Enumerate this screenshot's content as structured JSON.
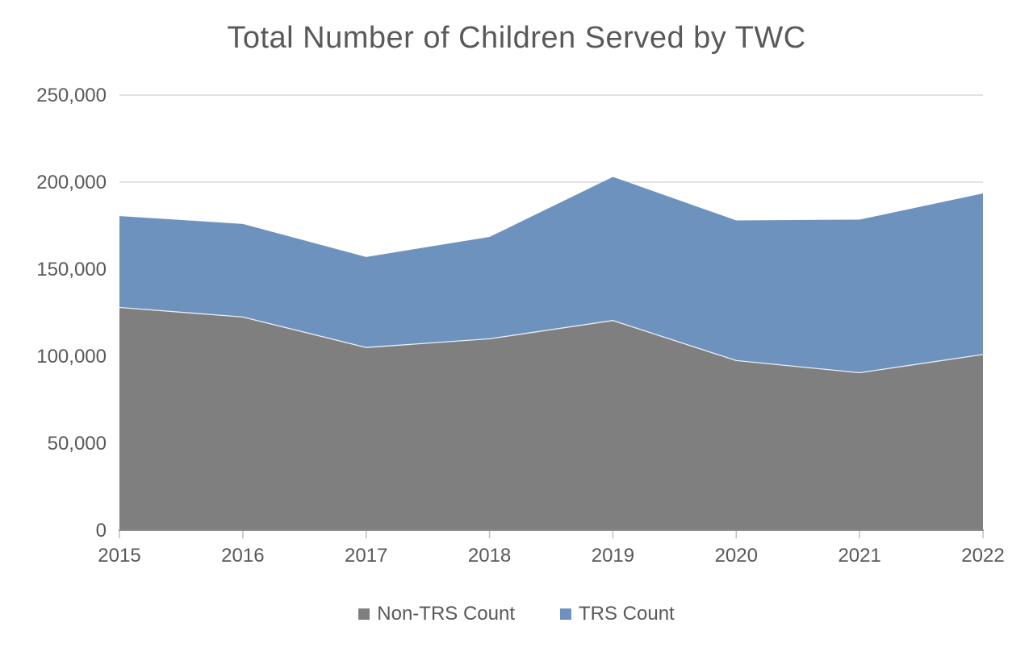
{
  "chart_data": {
    "type": "area",
    "stacked": true,
    "title": "Total Number of Children Served by TWC",
    "categories": [
      "2015",
      "2016",
      "2017",
      "2018",
      "2019",
      "2020",
      "2021",
      "2022"
    ],
    "series": [
      {
        "name": "Non-TRS Count",
        "color": "#7f7f7f",
        "values": [
          128000,
          122500,
          105000,
          110000,
          120500,
          97500,
          90500,
          101000
        ]
      },
      {
        "name": "TRS Count",
        "color": "#6e92be",
        "values": [
          52500,
          53500,
          52000,
          58500,
          82500,
          80500,
          88000,
          92500
        ]
      }
    ],
    "stacked_totals": [
      180500,
      176000,
      157000,
      168500,
      203000,
      178000,
      178500,
      193500
    ],
    "xlabel": "",
    "ylabel": "",
    "ylim": [
      0,
      250000
    ],
    "ytick_interval": 50000,
    "yticklabels": [
      "0",
      "50,000",
      "100,000",
      "150,000",
      "200,000",
      "250,000"
    ],
    "grid": true,
    "legend_position": "bottom"
  },
  "colors": {
    "gridline": "#d9d9d9",
    "axis_line": "#8e8e8e",
    "tick_mark": "#bfbfbf",
    "label_text": "#595959",
    "series_separator": "#ffffff",
    "background": "#ffffff"
  }
}
